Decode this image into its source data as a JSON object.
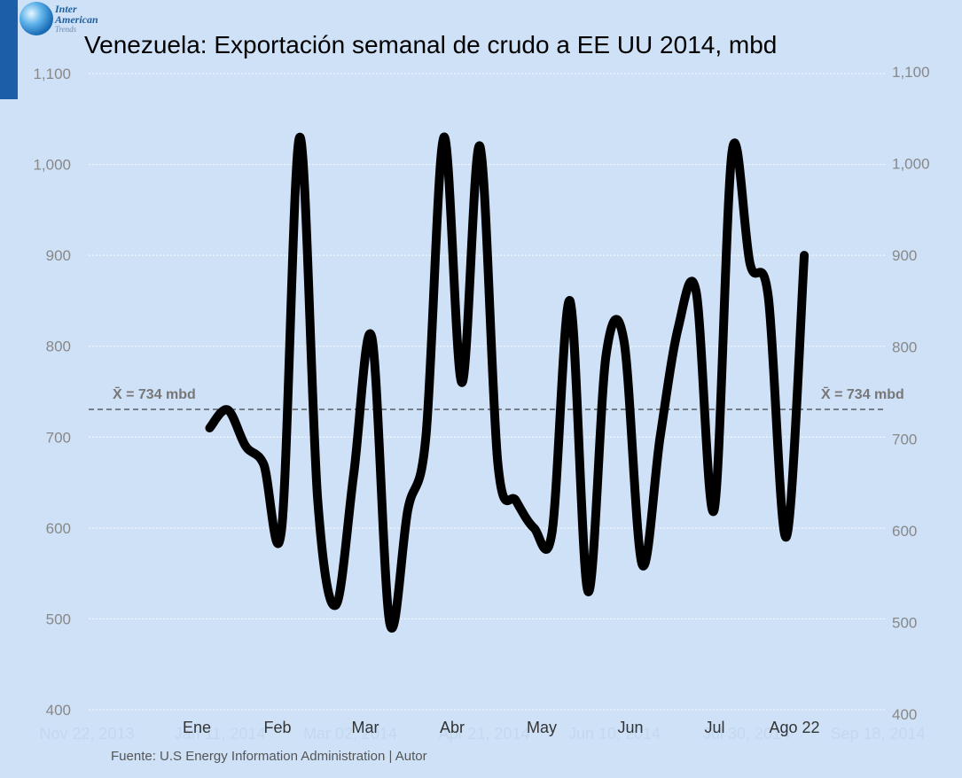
{
  "logo": {
    "line1": "Inter",
    "line2": "American",
    "line3": "Trends"
  },
  "title": "Venezuela: Exportación semanal de crudo a EE UU 2014, mbd",
  "source": "Fuente: U.S Energy Information Administration  |  Autor",
  "colors": {
    "background": "#cfe1f7",
    "line": "#000000",
    "grid": "#ffffff",
    "tick": "#888888",
    "ghost_tick": "#c3d7ef",
    "mean_line": "#444444"
  },
  "chart_data": {
    "type": "line",
    "title": "Venezuela: Exportación semanal de crudo a EE UU 2014, mbd",
    "xlabel": "",
    "ylabel": "",
    "ylim": [
      400,
      1100
    ],
    "y_ticks_left": [
      "1,100",
      "1,000",
      "900",
      "800",
      "700",
      "600",
      "500",
      "400"
    ],
    "y_ticks_left_values": [
      1100,
      1000,
      900,
      800,
      700,
      600,
      500,
      400
    ],
    "y_ticks_right": [
      "1,100",
      "1,000",
      "900",
      "800",
      "700",
      "600",
      "500",
      "400"
    ],
    "y_ticks_right_values": [
      1100,
      1000,
      900,
      800,
      700,
      600,
      500,
      400
    ],
    "ghost_x_ticks": [
      "Nov 22, 2013",
      "Jan 11, 2014",
      "Mar 02, 2014",
      "Apr 21, 2014",
      "Jun 10, 2014",
      "Jul 30, 2014",
      "Sep 18, 2014"
    ],
    "month_labels": [
      "Ene",
      "Feb",
      "Mar",
      "Abr",
      "May",
      "Jun",
      "Jul",
      "Ago 22"
    ],
    "mean": {
      "value": 734,
      "label": "X̄ = 734 mbd"
    },
    "x_range": [
      "2013-11-17",
      "2014-09-23"
    ],
    "series": [
      {
        "x": [
          "2014-01-03",
          "2014-01-10",
          "2014-01-17",
          "2014-01-24",
          "2014-01-31",
          "2014-02-07",
          "2014-02-14",
          "2014-02-21",
          "2014-02-28",
          "2014-03-07",
          "2014-03-14",
          "2014-03-21",
          "2014-03-28",
          "2014-04-04",
          "2014-04-11",
          "2014-04-18",
          "2014-04-25",
          "2014-05-02",
          "2014-05-09",
          "2014-05-16",
          "2014-05-23",
          "2014-05-30",
          "2014-06-06",
          "2014-06-13",
          "2014-06-20",
          "2014-06-27",
          "2014-07-04",
          "2014-07-11",
          "2014-07-18",
          "2014-07-25",
          "2014-08-01",
          "2014-08-08",
          "2014-08-15",
          "2014-08-22"
        ],
        "values": [
          710,
          730,
          690,
          670,
          600,
          1030,
          630,
          515,
          660,
          810,
          495,
          620,
          700,
          1030,
          760,
          1020,
          670,
          630,
          600,
          595,
          850,
          530,
          790,
          805,
          560,
          700,
          820,
          860,
          620,
          1015,
          890,
          855,
          590,
          900
        ]
      }
    ],
    "grid": true,
    "legend": "none"
  }
}
